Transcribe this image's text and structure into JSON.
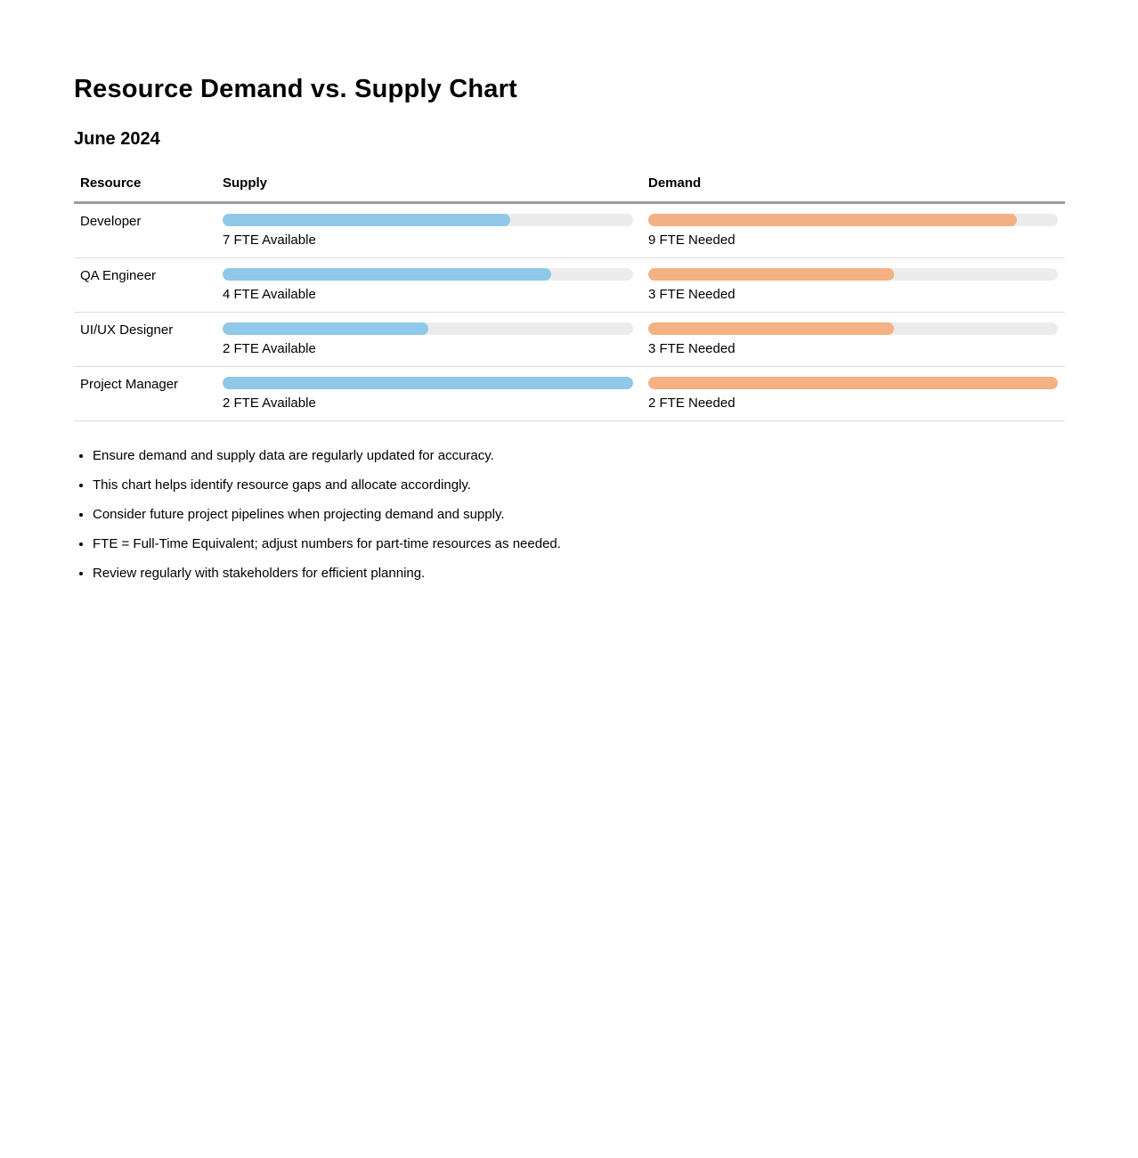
{
  "page": {
    "title": "Resource Demand vs. Supply Chart",
    "subtitle": "June 2024"
  },
  "table": {
    "headers": {
      "resource": "Resource",
      "supply": "Supply",
      "demand": "Demand"
    },
    "rows": [
      {
        "resource": "Developer",
        "supply_fte": 7,
        "supply_label": "7 FTE Available",
        "supply_pct": 70,
        "demand_fte": 9,
        "demand_label": "9 FTE Needed",
        "demand_pct": 90
      },
      {
        "resource": "QA Engineer",
        "supply_fte": 4,
        "supply_label": "4 FTE Available",
        "supply_pct": 80,
        "demand_fte": 3,
        "demand_label": "3 FTE Needed",
        "demand_pct": 60
      },
      {
        "resource": "UI/UX Designer",
        "supply_fte": 2,
        "supply_label": "2 FTE Available",
        "supply_pct": 50,
        "demand_fte": 3,
        "demand_label": "3 FTE Needed",
        "demand_pct": 60
      },
      {
        "resource": "Project Manager",
        "supply_fte": 2,
        "supply_label": "2 FTE Available",
        "supply_pct": 100,
        "demand_fte": 2,
        "demand_label": "2 FTE Needed",
        "demand_pct": 100
      }
    ]
  },
  "notes": [
    "Ensure demand and supply data are regularly updated for accuracy.",
    "This chart helps identify resource gaps and allocate accordingly.",
    "Consider future project pipelines when projecting demand and supply.",
    "FTE = Full-Time Equivalent; adjust numbers for part-time resources as needed.",
    "Review regularly with stakeholders for efficient planning."
  ],
  "colors": {
    "supply_bar": "#8FC8E8",
    "demand_bar": "#F4B183",
    "bar_track": "#ECECEC",
    "header_border": "#9E9E9E",
    "row_border": "#DDDDDD"
  },
  "chart_data": {
    "type": "bar",
    "title": "Resource Demand vs. Supply Chart",
    "subtitle": "June 2024",
    "categories": [
      "Developer",
      "QA Engineer",
      "UI/UX Designer",
      "Project Manager"
    ],
    "series": [
      {
        "name": "Supply (FTE Available)",
        "values": [
          7,
          4,
          2,
          2
        ]
      },
      {
        "name": "Demand (FTE Needed)",
        "values": [
          9,
          3,
          3,
          2
        ]
      }
    ],
    "value_unit": "FTE",
    "legend_position": "none",
    "grid": false,
    "bar_fill_percent": {
      "supply": [
        70,
        80,
        50,
        100
      ],
      "demand": [
        90,
        60,
        60,
        100
      ]
    }
  }
}
